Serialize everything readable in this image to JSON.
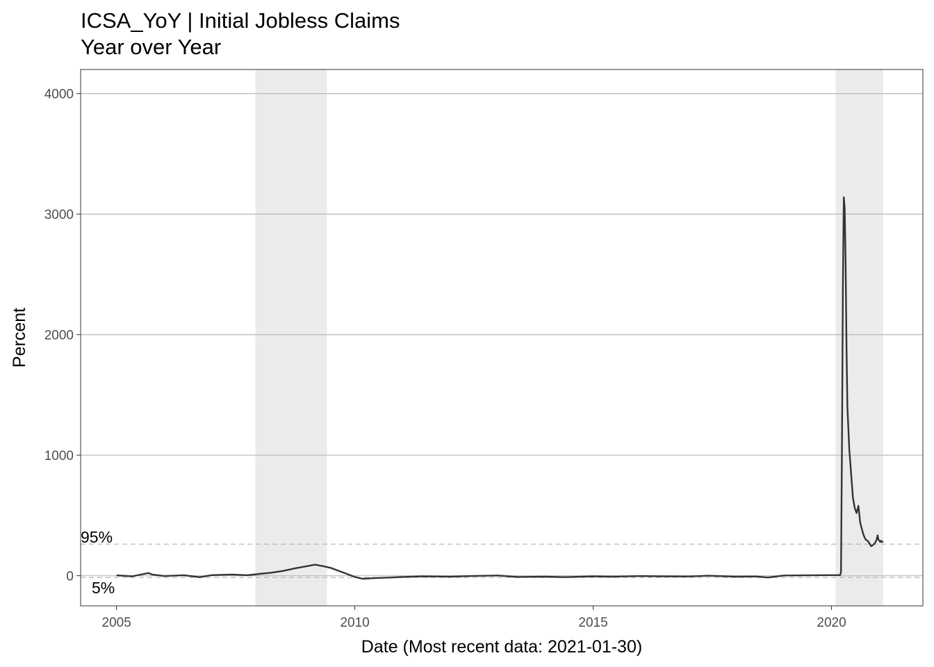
{
  "chart_data": {
    "type": "line",
    "title": "ICSA_YoY | Initial Jobless Claims",
    "subtitle": "Year over Year",
    "xlabel": "Date (Most recent data: 2021-01-30)",
    "ylabel": "Percent",
    "xlim": [
      "2004-04-01",
      "2021-12-01"
    ],
    "ylim": [
      -250,
      4200
    ],
    "x_ticks": [
      {
        "value": "2005-01-01",
        "label": "2005"
      },
      {
        "value": "2010-01-01",
        "label": "2010"
      },
      {
        "value": "2015-01-01",
        "label": "2015"
      },
      {
        "value": "2020-01-01",
        "label": "2020"
      }
    ],
    "y_ticks": [
      {
        "value": 0,
        "label": "0"
      },
      {
        "value": 1000,
        "label": "1000"
      },
      {
        "value": 2000,
        "label": "2000"
      },
      {
        "value": 3000,
        "label": "3000"
      },
      {
        "value": 4000,
        "label": "4000"
      }
    ],
    "grid": "horizontal major lines",
    "recessions": [
      {
        "start": "2007-12-01",
        "end": "2009-06-01"
      },
      {
        "start": "2020-02-01",
        "end": "2021-01-30"
      }
    ],
    "reference_lines": [
      {
        "label": "95%",
        "value": 262
      },
      {
        "label": "5%",
        "value": -15
      }
    ],
    "series": [
      {
        "color": "#333333",
        "points": [
          [
            "2005-01-01",
            3
          ],
          [
            "2005-05-01",
            -5
          ],
          [
            "2005-09-01",
            22
          ],
          [
            "2005-10-01",
            10
          ],
          [
            "2006-01-01",
            -3
          ],
          [
            "2006-06-01",
            4
          ],
          [
            "2006-10-01",
            -12
          ],
          [
            "2007-01-01",
            5
          ],
          [
            "2007-06-01",
            10
          ],
          [
            "2007-10-01",
            4
          ],
          [
            "2008-01-01",
            15
          ],
          [
            "2008-04-01",
            25
          ],
          [
            "2008-07-01",
            40
          ],
          [
            "2008-10-01",
            62
          ],
          [
            "2009-01-01",
            80
          ],
          [
            "2009-03-01",
            92
          ],
          [
            "2009-05-01",
            80
          ],
          [
            "2009-07-01",
            65
          ],
          [
            "2009-09-01",
            40
          ],
          [
            "2009-11-01",
            15
          ],
          [
            "2010-01-01",
            -10
          ],
          [
            "2010-03-01",
            -25
          ],
          [
            "2010-06-01",
            -20
          ],
          [
            "2010-10-01",
            -15
          ],
          [
            "2011-01-01",
            -10
          ],
          [
            "2011-06-01",
            -5
          ],
          [
            "2012-01-01",
            -8
          ],
          [
            "2012-06-01",
            -3
          ],
          [
            "2013-01-01",
            2
          ],
          [
            "2013-06-01",
            -10
          ],
          [
            "2014-01-01",
            -8
          ],
          [
            "2014-06-01",
            -12
          ],
          [
            "2015-01-01",
            -5
          ],
          [
            "2015-06-01",
            -8
          ],
          [
            "2016-01-01",
            -3
          ],
          [
            "2016-06-01",
            -5
          ],
          [
            "2017-01-01",
            -6
          ],
          [
            "2017-06-01",
            0
          ],
          [
            "2018-01-01",
            -8
          ],
          [
            "2018-06-01",
            -6
          ],
          [
            "2018-09-01",
            -15
          ],
          [
            "2019-01-01",
            2
          ],
          [
            "2019-06-01",
            3
          ],
          [
            "2019-12-01",
            5
          ],
          [
            "2020-03-07",
            5
          ],
          [
            "2020-03-14",
            30
          ],
          [
            "2020-03-21",
            1100
          ],
          [
            "2020-03-28",
            2400
          ],
          [
            "2020-04-04",
            3140
          ],
          [
            "2020-04-11",
            3050
          ],
          [
            "2020-04-18",
            2600
          ],
          [
            "2020-04-25",
            1900
          ],
          [
            "2020-05-02",
            1400
          ],
          [
            "2020-05-16",
            1050
          ],
          [
            "2020-05-30",
            850
          ],
          [
            "2020-06-13",
            650
          ],
          [
            "2020-06-27",
            560
          ],
          [
            "2020-07-11",
            520
          ],
          [
            "2020-07-25",
            580
          ],
          [
            "2020-08-08",
            440
          ],
          [
            "2020-08-22",
            380
          ],
          [
            "2020-09-05",
            330
          ],
          [
            "2020-09-19",
            300
          ],
          [
            "2020-10-03",
            290
          ],
          [
            "2020-10-17",
            270
          ],
          [
            "2020-10-31",
            245
          ],
          [
            "2020-11-14",
            255
          ],
          [
            "2020-11-28",
            270
          ],
          [
            "2020-12-12",
            300
          ],
          [
            "2020-12-19",
            335
          ],
          [
            "2020-12-26",
            300
          ],
          [
            "2021-01-09",
            280
          ],
          [
            "2021-01-16",
            290
          ],
          [
            "2021-01-30",
            275
          ]
        ]
      }
    ]
  }
}
